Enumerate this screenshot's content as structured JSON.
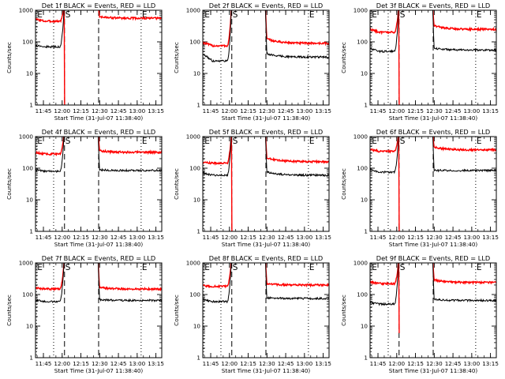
{
  "chart_data": {
    "type": "line",
    "panel_titles": [
      "Det 1f BLACK = Events, RED = LLD",
      "Det 2f BLACK = Events, RED = LLD",
      "Det 3f BLACK = Events, RED = LLD",
      "Det 4f BLACK = Events, RED = LLD",
      "Det 5f BLACK = Events, RED = LLD",
      "Det 6f BLACK = Events, RED = LLD",
      "Det 7f BLACK = Events, RED = LLD",
      "Det 8f BLACK = Events, RED = LLD",
      "Det 9f BLACK = Events, RED = LLD"
    ],
    "xlabel": "Start Time (31-Jul-07 11:38:40)",
    "ylabel": "Counts/sec",
    "xlim_minutes": [
      0,
      101
    ],
    "x_ticks": [
      {
        "label": "11:45",
        "minute": 6.33
      },
      {
        "label": "12:00",
        "minute": 21.33
      },
      {
        "label": "12:15",
        "minute": 36.33
      },
      {
        "label": "12:30",
        "minute": 51.33
      },
      {
        "label": "12:45",
        "minute": 66.33
      },
      {
        "label": "13:00",
        "minute": 81.33
      },
      {
        "label": "13:15",
        "minute": 96.33
      }
    ],
    "y_scale": "log",
    "ylim": [
      1,
      1000
    ],
    "y_ticks": [
      {
        "label": "1",
        "value": 1
      },
      {
        "label": "10",
        "value": 10
      },
      {
        "label": "100",
        "value": 100
      },
      {
        "label": "1000",
        "value": 1000
      }
    ],
    "markers": [
      {
        "label": "E",
        "minute": 0.8,
        "style": "dotted"
      },
      {
        "label": "",
        "minute": 14.5,
        "style": "dotted"
      },
      {
        "label": "S",
        "minute": 23.2,
        "style": "dashed"
      },
      {
        "label": "",
        "minute": 50.5,
        "style": "dashed"
      },
      {
        "label": "E",
        "minute": 84.5,
        "style": "dotted"
      }
    ],
    "gap_minutes": [
      23,
      50
    ],
    "colors": {
      "events": "#000000",
      "lld": "#ff0000"
    },
    "panels": [
      {
        "events": {
          "pre": 70,
          "pre_start": 78,
          "post": 95,
          "post_start": 70
        },
        "lld": {
          "pre": 450,
          "pre_start": 520,
          "post": 560,
          "post_start": 640
        }
      },
      {
        "events": {
          "pre": 25,
          "pre_start": 40,
          "post": 33,
          "post_start": 44
        },
        "lld": {
          "pre": 75,
          "pre_start": 95,
          "post": 90,
          "post_start": 130
        }
      },
      {
        "events": {
          "pre": 50,
          "pre_start": 60,
          "post": 55,
          "post_start": 65
        },
        "lld": {
          "pre": 200,
          "pre_start": 250,
          "post": 250,
          "post_start": 340
        }
      },
      {
        "events": {
          "pre": 80,
          "pre_start": 90,
          "post": 85,
          "post_start": 90
        },
        "lld": {
          "pre": 280,
          "pre_start": 310,
          "post": 320,
          "post_start": 360
        }
      },
      {
        "events": {
          "pre": 60,
          "pre_start": 70,
          "post": 60,
          "post_start": 80
        },
        "lld": {
          "pre": 145,
          "pre_start": 150,
          "post": 160,
          "post_start": 230
        }
      },
      {
        "events": {
          "pre": 75,
          "pre_start": 90,
          "post": 85,
          "post_start": 85
        },
        "lld": {
          "pre": 340,
          "pre_start": 390,
          "post": 380,
          "post_start": 480
        }
      },
      {
        "events": {
          "pre": 60,
          "pre_start": 65,
          "post": 65,
          "post_start": 70
        },
        "lld": {
          "pre": 150,
          "pre_start": 160,
          "post": 150,
          "post_start": 170
        }
      },
      {
        "events": {
          "pre": 60,
          "pre_start": 70,
          "post": 75,
          "post_start": 80
        },
        "lld": {
          "pre": 180,
          "pre_start": 190,
          "post": 200,
          "post_start": 220
        }
      },
      {
        "events": {
          "pre": 50,
          "pre_start": 55,
          "post": 65,
          "post_start": 70
        },
        "lld": {
          "pre": 220,
          "pre_start": 250,
          "post": 240,
          "post_start": 300
        }
      }
    ]
  }
}
